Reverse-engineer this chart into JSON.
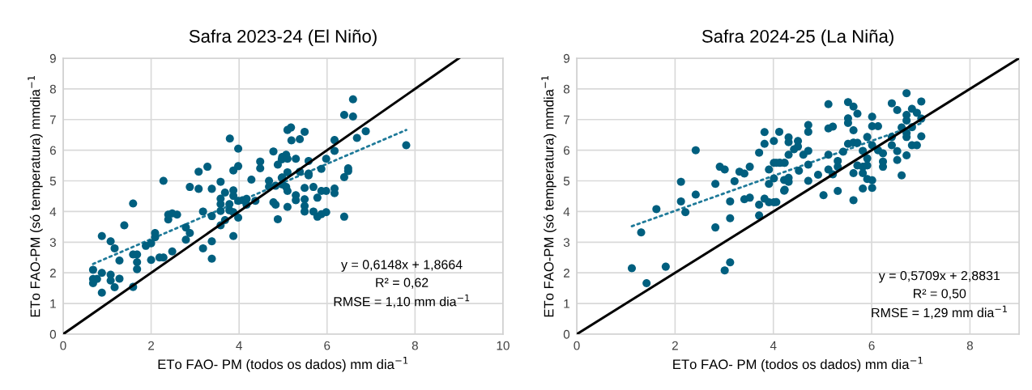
{
  "chart_data": [
    {
      "type": "scatter",
      "title": "Safra 2023-24 (El Niño)",
      "xlabel": "ETo FAO- PM (todos os dados) mm dia$^{−1}$",
      "ylabel": "ETo FAO-PM (só temperatura) mmdia$^{−1}$",
      "xlim": [
        0,
        10
      ],
      "xticks": [
        0,
        2,
        4,
        6,
        8,
        10
      ],
      "ylim": [
        0,
        9
      ],
      "yticks": [
        0,
        1,
        2,
        3,
        4,
        5,
        6,
        7,
        8,
        9
      ],
      "grid": true,
      "annotations": [
        "y = 0,6148x + 1,8664",
        "R² = 0,62",
        "RMSE = 1,10 mm dia$^{−1}$"
      ],
      "series": [
        {
          "marker": "circle",
          "color": "#005f7f",
          "x": [
            0.68,
            0.68,
            0.77,
            0.68,
            0.88,
            0.88,
            1.08,
            1.08,
            1.17,
            1.28,
            1.28,
            0.88,
            1.08,
            1.17,
            1.39,
            1.59,
            1.59,
            1.68,
            1.68,
            1.68,
            1.59,
            2.0,
            1.88,
            2.0,
            2.09,
            2.09,
            2.19,
            2.28,
            2.48,
            2.28,
            2.39,
            2.39,
            2.48,
            2.59,
            2.79,
            2.79,
            2.88,
            2.88,
            3.08,
            3.08,
            3.28,
            3.18,
            3.38,
            3.18,
            3.38,
            3.38,
            3.38,
            3.58,
            3.58,
            3.58,
            3.58,
            3.58,
            3.68,
            3.68,
            3.78,
            3.78,
            3.87,
            3.87,
            3.87,
            3.87,
            3.98,
            3.79,
            3.98,
            3.87,
            3.98,
            3.98,
            4.08,
            4.17,
            4.17,
            4.37,
            4.28,
            4.48,
            4.48,
            4.68,
            4.68,
            4.78,
            4.88,
            4.78,
            4.88,
            4.97,
            4.97,
            4.83,
            4.83,
            4.98,
            5.07,
            5.1,
            5.1,
            4.98,
            4.98,
            5.07,
            5.1,
            5.1,
            5.1,
            5.18,
            5.19,
            5.38,
            5.49,
            5.29,
            5.38,
            5.29,
            5.29,
            5.49,
            5.49,
            5.49,
            5.49,
            5.58,
            5.58,
            5.58,
            5.69,
            5.78,
            5.69,
            5.78,
            5.87,
            5.98,
            5.87,
            5.98,
            5.87,
            5.98,
            6.17,
            6.17,
            6.17,
            6.17,
            6.39,
            6.39,
            6.59,
            6.59,
            6.48,
            6.48,
            6.39,
            6.68,
            6.88,
            7.8
          ],
          "values": [
            2.1,
            1.8,
            1.8,
            1.66,
            2.0,
            1.35,
            1.94,
            1.75,
            1.53,
            1.81,
            2.4,
            3.2,
            3.03,
            2.8,
            3.55,
            4.26,
            2.6,
            2.6,
            2.35,
            2.12,
            1.54,
            2.42,
            2.88,
            2.96,
            3.16,
            3.3,
            2.5,
            2.5,
            2.7,
            5.0,
            3.74,
            3.9,
            3.94,
            3.9,
            3.08,
            3.48,
            3.3,
            4.8,
            4.74,
            5.3,
            5.46,
            4.0,
            3.85,
            2.8,
            3.03,
            2.46,
            4.74,
            4.97,
            4.42,
            4.24,
            4.02,
            3.55,
            4.62,
            3.72,
            4.24,
            4.04,
            3.98,
            4.69,
            4.51,
            3.2,
            3.8,
            6.38,
            6.05,
            5.34,
            5.48,
            4.35,
            4.37,
            4.41,
            4.22,
            4.35,
            5.04,
            5.63,
            5.41,
            5.0,
            4.81,
            5.96,
            5.53,
            4.3,
            3.75,
            5.7,
            5.1,
            4.84,
            4.22,
            5.78,
            5.85,
            5.72,
            5.28,
            5.11,
            4.88,
            4.8,
            4.67,
            4.15,
            6.66,
            6.74,
            6.32,
            6.36,
            6.6,
            5.72,
            5.3,
            4.53,
            4.37,
            4.77,
            4.4,
            4.18,
            4.0,
            5.65,
            5.24,
            5.18,
            4.8,
            4.45,
            4.0,
            3.83,
            3.91,
            3.98,
            4.67,
            4.67,
            5.39,
            5.72,
            6.33,
            5.98,
            4.75,
            4.6,
            3.83,
            7.15,
            7.1,
            7.66,
            5.41,
            5.32,
            5.12,
            6.4,
            6.62,
            6.16
          ]
        },
        {
          "type": "line",
          "marker": "none",
          "color": "#1f7a99",
          "line_style": "dotted",
          "x": [
            0.68,
            7.8
          ],
          "values": [
            2.29,
            6.66
          ]
        },
        {
          "type": "line",
          "marker": "none",
          "color": "#000000",
          "line_style": "solid",
          "x": [
            0,
            9
          ],
          "values": [
            0,
            9
          ]
        }
      ]
    },
    {
      "type": "scatter",
      "title": "Safra 2024-25 (La Niña)",
      "xlabel": "ETo FAO- PM (todos os dados) mm dia$^{−1}$",
      "ylabel": "ETo FAO-PM (só temperatura) mmdia$^{−1}$",
      "xlim": [
        0,
        9
      ],
      "xticks": [
        0,
        2,
        4,
        6,
        8
      ],
      "ylim": [
        0,
        9
      ],
      "yticks": [
        0,
        1,
        2,
        3,
        4,
        5,
        6,
        7,
        8,
        9
      ],
      "grid": true,
      "annotations": [
        "y = 0,5709x + 2,8831",
        "R² = 0,50",
        "RMSE = 1,29 mm dia$^{−1}$"
      ],
      "series": [
        {
          "marker": "circle",
          "color": "#005f7f",
          "x": [
            1.12,
            1.42,
            1.31,
            1.62,
            1.81,
            2.12,
            2.12,
            2.21,
            2.42,
            2.42,
            2.82,
            2.82,
            2.91,
            3.01,
            3.01,
            3.12,
            3.12,
            3.12,
            3.21,
            3.31,
            3.41,
            3.52,
            3.41,
            3.52,
            3.71,
            3.71,
            3.71,
            3.82,
            3.82,
            3.82,
            3.91,
            4.01,
            3.91,
            3.91,
            4.01,
            4.01,
            4.01,
            4.12,
            4.12,
            4.22,
            4.22,
            4.22,
            4.31,
            4.31,
            4.31,
            4.06,
            4.14,
            4.23,
            4.42,
            4.5,
            4.5,
            4.61,
            4.71,
            4.71,
            4.71,
            4.71,
            4.71,
            4.31,
            4.31,
            4.23,
            4.06,
            4.52,
            4.91,
            5.02,
            5.12,
            5.12,
            5.21,
            5.12,
            5.12,
            5.21,
            5.31,
            5.31,
            5.31,
            5.52,
            5.63,
            5.71,
            5.52,
            5.52,
            5.63,
            5.52,
            5.63,
            5.71,
            5.63,
            5.63,
            5.42,
            5.71,
            5.82,
            5.82,
            5.82,
            5.91,
            5.91,
            5.91,
            5.91,
            6.01,
            6.01,
            6.01,
            6.01,
            5.82,
            6.01,
            6.13,
            6.13,
            6.23,
            6.23,
            6.23,
            6.41,
            6.52,
            6.41,
            6.41,
            6.52,
            6.52,
            6.61,
            6.61,
            6.71,
            6.71,
            6.71,
            6.71,
            6.71,
            6.71,
            6.82,
            6.82,
            6.82,
            6.92,
            6.92,
            7.01,
            7.01,
            7.01
          ],
          "values": [
            2.15,
            1.66,
            3.32,
            4.08,
            2.2,
            4.97,
            4.33,
            3.98,
            6.0,
            4.55,
            4.9,
            3.48,
            5.46,
            5.37,
            2.08,
            2.34,
            4.33,
            3.78,
            4.99,
            5.3,
            5.24,
            5.46,
            4.4,
            4.45,
            4.22,
            3.87,
            5.92,
            6.59,
            6.21,
            4.42,
            4.3,
            4.3,
            4.9,
            5.37,
            5.08,
            5.59,
            6.3,
            6.6,
            5.59,
            5.59,
            5.03,
            4.68,
            6.42,
            6.26,
            5.85,
            5.59,
            5.59,
            5.59,
            6.03,
            6.3,
            6.12,
            5.85,
            6.82,
            6.6,
            5.98,
            5.53,
            5.0,
            5.1,
            4.97,
            4.71,
            4.31,
            5.33,
            5.2,
            4.53,
            7.5,
            6.71,
            6.77,
            5.85,
            5.37,
            5.21,
            5.65,
            5.46,
            4.67,
            7.57,
            7.42,
            7.19,
            7.04,
            6.89,
            6.65,
            6.21,
            6.25,
            6.24,
            5.25,
            4.37,
            5.95,
            5.5,
            5.98,
            5.46,
            5.25,
            6.43,
            5.73,
            5.5,
            5.06,
            7.09,
            6.78,
            6.16,
            5.02,
            4.75,
            4.77,
            6.78,
            6.0,
            5.9,
            5.63,
            5.46,
            7.53,
            7.31,
            6.43,
            6.16,
            5.97,
            5.68,
            6.74,
            5.18,
            7.86,
            7.15,
            6.97,
            6.56,
            6.43,
            5.83,
            7.35,
            6.75,
            6.16,
            7.22,
            6.16,
            7.59,
            7.03,
            6.45
          ]
        },
        {
          "type": "line",
          "marker": "none",
          "color": "#1f7a99",
          "line_style": "dotted",
          "x": [
            1.12,
            7.01
          ],
          "values": [
            3.52,
            6.88
          ]
        },
        {
          "type": "line",
          "marker": "none",
          "color": "#000000",
          "line_style": "solid",
          "x": [
            0,
            9
          ],
          "values": [
            0,
            9
          ]
        }
      ]
    }
  ]
}
